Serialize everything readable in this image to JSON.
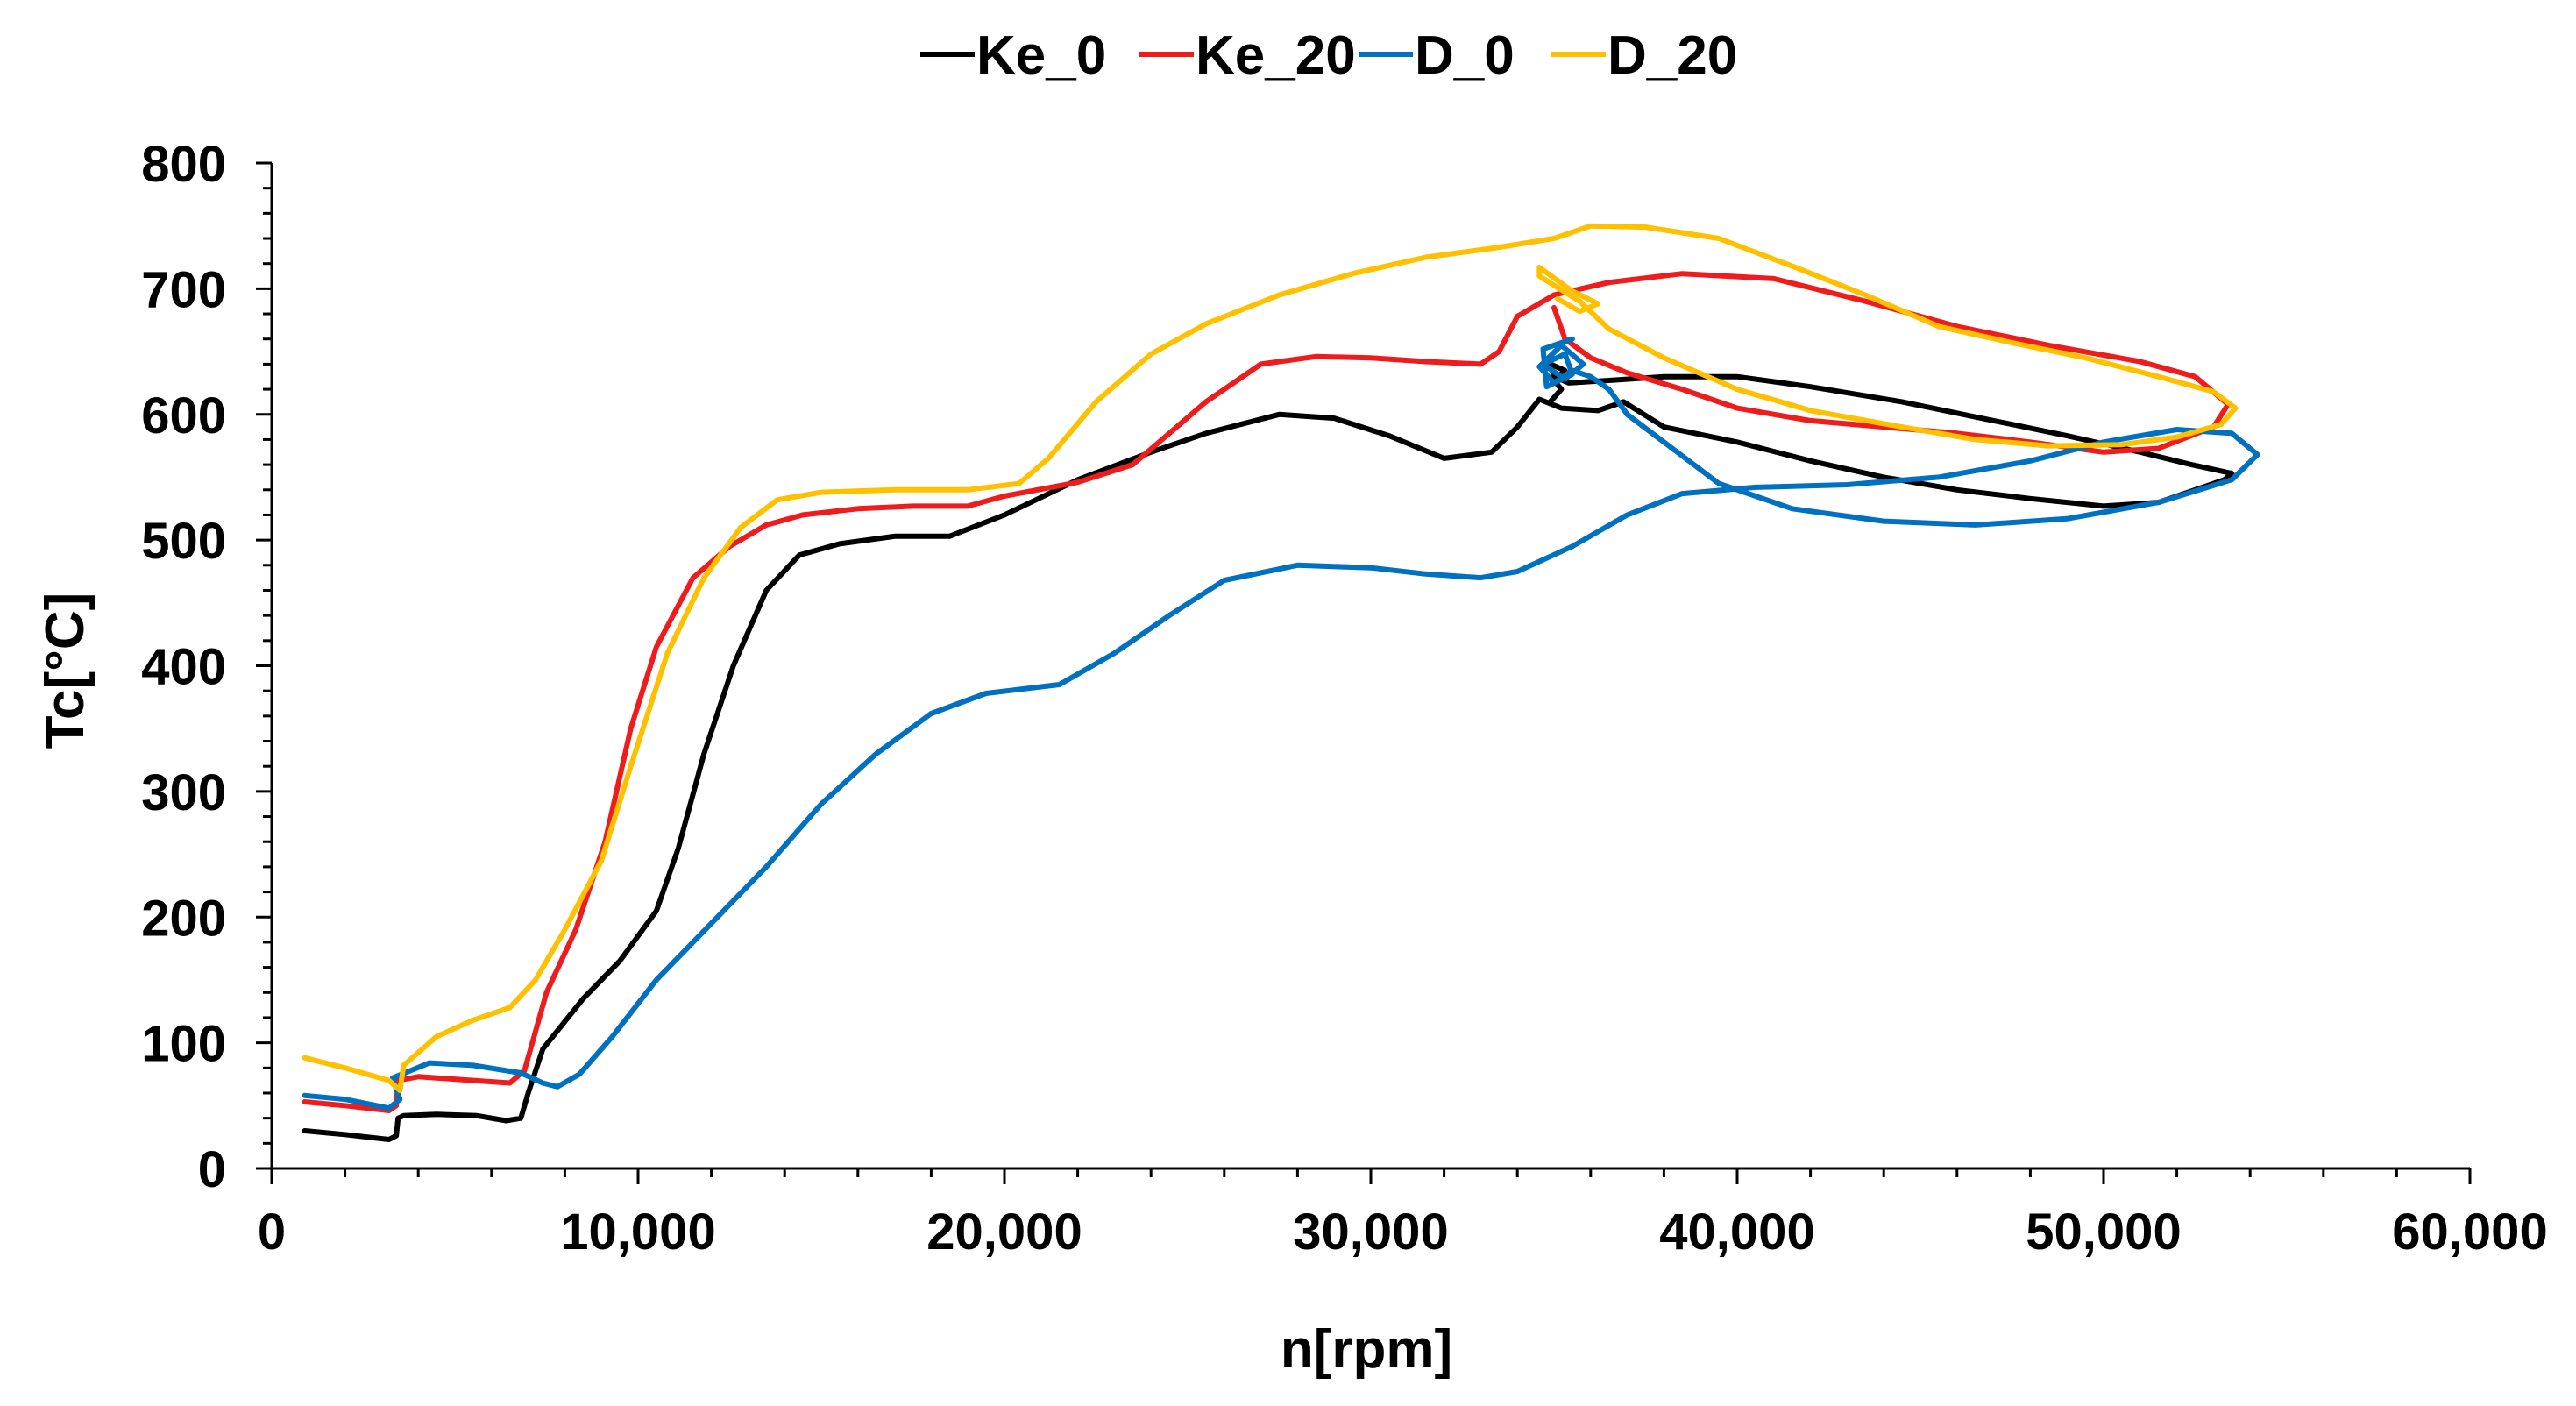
{
  "chart_data": {
    "type": "line",
    "title": "",
    "xlabel": "n[rpm]",
    "ylabel": "Tc[°C]",
    "xlim": [
      0,
      60000
    ],
    "ylim": [
      0,
      800
    ],
    "xticks": [
      0,
      10000,
      20000,
      30000,
      40000,
      50000,
      60000
    ],
    "xtick_labels": [
      "0",
      "10,000",
      "20,000",
      "30,000",
      "40,000",
      "50,000",
      "60,000"
    ],
    "yticks": [
      0,
      100,
      200,
      300,
      400,
      500,
      600,
      700,
      800
    ],
    "ytick_labels": [
      "0",
      "100",
      "200",
      "300",
      "400",
      "500",
      "600",
      "700",
      "800"
    ],
    "grid": false,
    "legend_position": "top",
    "series": [
      {
        "name": "Ke_0",
        "color": "#000000",
        "points": [
          [
            900,
            30
          ],
          [
            2000,
            27
          ],
          [
            3200,
            23
          ],
          [
            3400,
            26
          ],
          [
            3450,
            40
          ],
          [
            3600,
            42
          ],
          [
            4500,
            43
          ],
          [
            5600,
            42
          ],
          [
            6400,
            38
          ],
          [
            6800,
            40
          ],
          [
            7000,
            60
          ],
          [
            7400,
            95
          ],
          [
            8500,
            135
          ],
          [
            9500,
            165
          ],
          [
            10500,
            205
          ],
          [
            11100,
            255
          ],
          [
            11800,
            330
          ],
          [
            12600,
            400
          ],
          [
            13500,
            460
          ],
          [
            14400,
            488
          ],
          [
            15500,
            497
          ],
          [
            17000,
            503
          ],
          [
            18500,
            503
          ],
          [
            20000,
            520
          ],
          [
            22000,
            548
          ],
          [
            24000,
            570
          ],
          [
            25500,
            585
          ],
          [
            27500,
            600
          ],
          [
            29000,
            597
          ],
          [
            30500,
            583
          ],
          [
            32000,
            565
          ],
          [
            33300,
            570
          ],
          [
            34000,
            590
          ],
          [
            34600,
            612
          ],
          [
            35200,
            605
          ],
          [
            36200,
            603
          ],
          [
            36900,
            610
          ],
          [
            38000,
            590
          ],
          [
            40000,
            578
          ],
          [
            42000,
            563
          ],
          [
            44000,
            550
          ],
          [
            46000,
            540
          ],
          [
            48000,
            533
          ],
          [
            50000,
            527
          ],
          [
            51500,
            530
          ],
          [
            52500,
            540
          ],
          [
            53300,
            548
          ],
          [
            53500,
            553
          ],
          [
            53200,
            555
          ],
          [
            52400,
            560
          ],
          [
            51000,
            570
          ],
          [
            49000,
            583
          ],
          [
            47000,
            595
          ],
          [
            44500,
            610
          ],
          [
            42000,
            622
          ],
          [
            40000,
            630
          ],
          [
            38000,
            630
          ],
          [
            36500,
            627
          ],
          [
            35400,
            625
          ],
          [
            35000,
            630
          ],
          [
            34900,
            640
          ],
          [
            35300,
            635
          ],
          [
            35000,
            627
          ],
          [
            35200,
            620
          ],
          [
            34900,
            610
          ]
        ]
      },
      {
        "name": "Ke_20",
        "color": "#ee1c1c",
        "points": [
          [
            900,
            53
          ],
          [
            2000,
            50
          ],
          [
            3200,
            46
          ],
          [
            3400,
            50
          ],
          [
            3450,
            70
          ],
          [
            4000,
            73
          ],
          [
            5500,
            70
          ],
          [
            6500,
            68
          ],
          [
            6900,
            78
          ],
          [
            7500,
            140
          ],
          [
            8300,
            190
          ],
          [
            9100,
            260
          ],
          [
            9800,
            350
          ],
          [
            10500,
            415
          ],
          [
            11500,
            470
          ],
          [
            12500,
            495
          ],
          [
            13500,
            512
          ],
          [
            14500,
            520
          ],
          [
            16000,
            525
          ],
          [
            17500,
            527
          ],
          [
            19000,
            527
          ],
          [
            20000,
            535
          ],
          [
            22000,
            546
          ],
          [
            23500,
            560
          ],
          [
            24500,
            585
          ],
          [
            25500,
            610
          ],
          [
            27000,
            640
          ],
          [
            28500,
            646
          ],
          [
            30000,
            645
          ],
          [
            31500,
            642
          ],
          [
            33000,
            640
          ],
          [
            33500,
            650
          ],
          [
            34000,
            678
          ],
          [
            35000,
            695
          ],
          [
            36500,
            705
          ],
          [
            38500,
            712
          ],
          [
            41000,
            708
          ],
          [
            43500,
            690
          ],
          [
            46000,
            670
          ],
          [
            48500,
            655
          ],
          [
            51000,
            642
          ],
          [
            52500,
            630
          ],
          [
            53400,
            608
          ],
          [
            53000,
            590
          ],
          [
            51500,
            573
          ],
          [
            50000,
            570
          ],
          [
            48000,
            578
          ],
          [
            46000,
            585
          ],
          [
            44000,
            590
          ],
          [
            42000,
            595
          ],
          [
            40000,
            605
          ],
          [
            38500,
            620
          ],
          [
            37000,
            633
          ],
          [
            36000,
            645
          ],
          [
            35300,
            660
          ],
          [
            35000,
            685
          ]
        ]
      },
      {
        "name": "D_0",
        "color": "#0070c0",
        "points": [
          [
            900,
            58
          ],
          [
            2000,
            55
          ],
          [
            3200,
            48
          ],
          [
            3500,
            55
          ],
          [
            3300,
            72
          ],
          [
            4300,
            84
          ],
          [
            5500,
            82
          ],
          [
            6800,
            76
          ],
          [
            7400,
            68
          ],
          [
            7800,
            65
          ],
          [
            8400,
            75
          ],
          [
            9300,
            105
          ],
          [
            10500,
            150
          ],
          [
            12000,
            195
          ],
          [
            13500,
            240
          ],
          [
            15000,
            290
          ],
          [
            16500,
            330
          ],
          [
            18000,
            362
          ],
          [
            19500,
            378
          ],
          [
            21500,
            385
          ],
          [
            23000,
            410
          ],
          [
            24500,
            440
          ],
          [
            26000,
            468
          ],
          [
            28000,
            480
          ],
          [
            30000,
            478
          ],
          [
            31500,
            473
          ],
          [
            33000,
            470
          ],
          [
            34000,
            475
          ],
          [
            35500,
            495
          ],
          [
            37000,
            520
          ],
          [
            38500,
            537
          ],
          [
            40500,
            542
          ],
          [
            43000,
            544
          ],
          [
            45500,
            550
          ],
          [
            48000,
            563
          ],
          [
            50000,
            578
          ],
          [
            52000,
            588
          ],
          [
            53500,
            585
          ],
          [
            54200,
            568
          ],
          [
            53500,
            548
          ],
          [
            51500,
            530
          ],
          [
            49000,
            517
          ],
          [
            46500,
            512
          ],
          [
            44000,
            515
          ],
          [
            41500,
            525
          ],
          [
            39500,
            545
          ],
          [
            38000,
            578
          ],
          [
            37000,
            600
          ],
          [
            36500,
            620
          ],
          [
            36000,
            630
          ],
          [
            35500,
            635
          ],
          [
            35000,
            625
          ],
          [
            34600,
            638
          ],
          [
            35200,
            655
          ],
          [
            35800,
            640
          ],
          [
            35300,
            628
          ],
          [
            34700,
            640
          ],
          [
            35300,
            648
          ],
          [
            35500,
            632
          ],
          [
            34800,
            622
          ],
          [
            34700,
            652
          ],
          [
            35500,
            660
          ]
        ]
      },
      {
        "name": "D_20",
        "color": "#ffc000",
        "points": [
          [
            900,
            88
          ],
          [
            2000,
            80
          ],
          [
            3200,
            70
          ],
          [
            3500,
            62
          ],
          [
            3600,
            82
          ],
          [
            4500,
            105
          ],
          [
            5500,
            118
          ],
          [
            6500,
            128
          ],
          [
            7200,
            150
          ],
          [
            8000,
            190
          ],
          [
            9000,
            245
          ],
          [
            9800,
            320
          ],
          [
            10800,
            410
          ],
          [
            11800,
            470
          ],
          [
            12800,
            510
          ],
          [
            13800,
            532
          ],
          [
            15000,
            538
          ],
          [
            17000,
            540
          ],
          [
            19000,
            540
          ],
          [
            20400,
            545
          ],
          [
            21200,
            565
          ],
          [
            22500,
            610
          ],
          [
            24000,
            648
          ],
          [
            25500,
            672
          ],
          [
            27500,
            695
          ],
          [
            29500,
            712
          ],
          [
            31500,
            725
          ],
          [
            33500,
            733
          ],
          [
            35000,
            740
          ],
          [
            36000,
            750
          ],
          [
            37500,
            749
          ],
          [
            39500,
            740
          ],
          [
            41500,
            718
          ],
          [
            43500,
            695
          ],
          [
            45500,
            670
          ],
          [
            47500,
            657
          ],
          [
            49500,
            645
          ],
          [
            51500,
            630
          ],
          [
            53000,
            618
          ],
          [
            53600,
            605
          ],
          [
            53200,
            592
          ],
          [
            52000,
            582
          ],
          [
            50500,
            576
          ],
          [
            48500,
            575
          ],
          [
            46500,
            580
          ],
          [
            44500,
            590
          ],
          [
            42000,
            603
          ],
          [
            40000,
            620
          ],
          [
            38000,
            645
          ],
          [
            36500,
            668
          ],
          [
            35700,
            690
          ],
          [
            34600,
            710
          ],
          [
            34600,
            717
          ],
          [
            35500,
            698
          ],
          [
            36200,
            688
          ],
          [
            35700,
            682
          ],
          [
            35100,
            692
          ]
        ]
      }
    ]
  }
}
